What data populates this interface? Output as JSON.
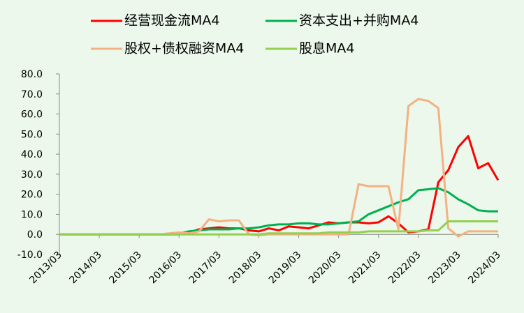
{
  "chart_data": {
    "type": "line",
    "categories": [
      "2013/03",
      null,
      null,
      null,
      "2014/03",
      null,
      null,
      null,
      "2015/03",
      null,
      null,
      null,
      "2016/03",
      null,
      null,
      null,
      "2017/03",
      null,
      null,
      null,
      "2018/03",
      null,
      null,
      null,
      "2019/03",
      null,
      null,
      null,
      "2020/03",
      null,
      null,
      null,
      "2021/03",
      null,
      null,
      null,
      "2022/03",
      null,
      null,
      null,
      "2023/03",
      null,
      null,
      null,
      "2024/03"
    ],
    "series": [
      {
        "name": "经营现金流MA4",
        "color": "#ff0000",
        "values": [
          0,
          0,
          0,
          0,
          0,
          0,
          0,
          0,
          0,
          0,
          0,
          0,
          0,
          1,
          2.5,
          3,
          3.5,
          3,
          3,
          2,
          1.5,
          3,
          2,
          4,
          3.5,
          3,
          4.5,
          6,
          5.5,
          6,
          6,
          5.5,
          6,
          9,
          5.5,
          1,
          1.5,
          2.5,
          26,
          32,
          43.5,
          49,
          33,
          35.5,
          27
        ]
      },
      {
        "name": "资本支出+并购MA4",
        "color": "#00b050",
        "values": [
          0,
          0,
          0,
          0,
          0,
          0,
          0,
          0,
          0,
          0,
          0,
          0,
          0.5,
          1.5,
          2,
          2.5,
          2.5,
          2.5,
          3,
          3,
          3.5,
          4.5,
          5,
          5,
          5.5,
          5.5,
          5,
          5,
          5.5,
          6,
          6.5,
          10,
          12,
          14,
          16,
          17.5,
          22,
          22.5,
          23,
          21,
          17.5,
          15,
          12,
          11.5,
          11.5
        ]
      },
      {
        "name": "股权+债权融资MA4",
        "color": "#f4b183",
        "values": [
          0,
          0,
          0,
          0,
          0,
          0,
          0,
          0,
          0,
          0,
          0,
          0.5,
          1,
          0.5,
          1.5,
          7.5,
          6.5,
          7,
          7,
          0,
          -0.5,
          0,
          0,
          0,
          0,
          0,
          0,
          0,
          0,
          0,
          25,
          24,
          24,
          24,
          2.5,
          64,
          67.5,
          66.5,
          63,
          3,
          -1,
          1.5,
          1.5,
          1.5,
          1.5
        ]
      },
      {
        "name": "股息MA4",
        "color": "#92d050",
        "values": [
          0,
          0,
          0,
          0,
          0,
          0,
          0,
          0,
          0,
          0,
          0,
          0,
          0,
          0,
          0,
          0,
          0,
          0,
          0,
          0,
          0,
          0.5,
          0.5,
          0.5,
          0.5,
          0.5,
          0.5,
          1,
          1,
          1,
          1,
          1.5,
          1.5,
          1.5,
          1.5,
          1.5,
          1.5,
          2,
          2,
          6.5,
          6.5,
          6.5,
          6.5,
          6.5,
          6.5
        ]
      }
    ],
    "ylim": [
      -10,
      80
    ],
    "yticks": [
      {
        "value": 80,
        "label": "80.0"
      },
      {
        "value": 70,
        "label": "70.0"
      },
      {
        "value": 60,
        "label": "60.0"
      },
      {
        "value": 50,
        "label": "50.0"
      },
      {
        "value": 40,
        "label": "40.0"
      },
      {
        "value": 30,
        "label": "30.0"
      },
      {
        "value": 20,
        "label": "20.0"
      },
      {
        "value": 10,
        "label": "10.0"
      },
      {
        "value": 0,
        "label": "0.0"
      },
      {
        "value": -10,
        "label": "-10.0"
      }
    ],
    "legend": "top"
  }
}
